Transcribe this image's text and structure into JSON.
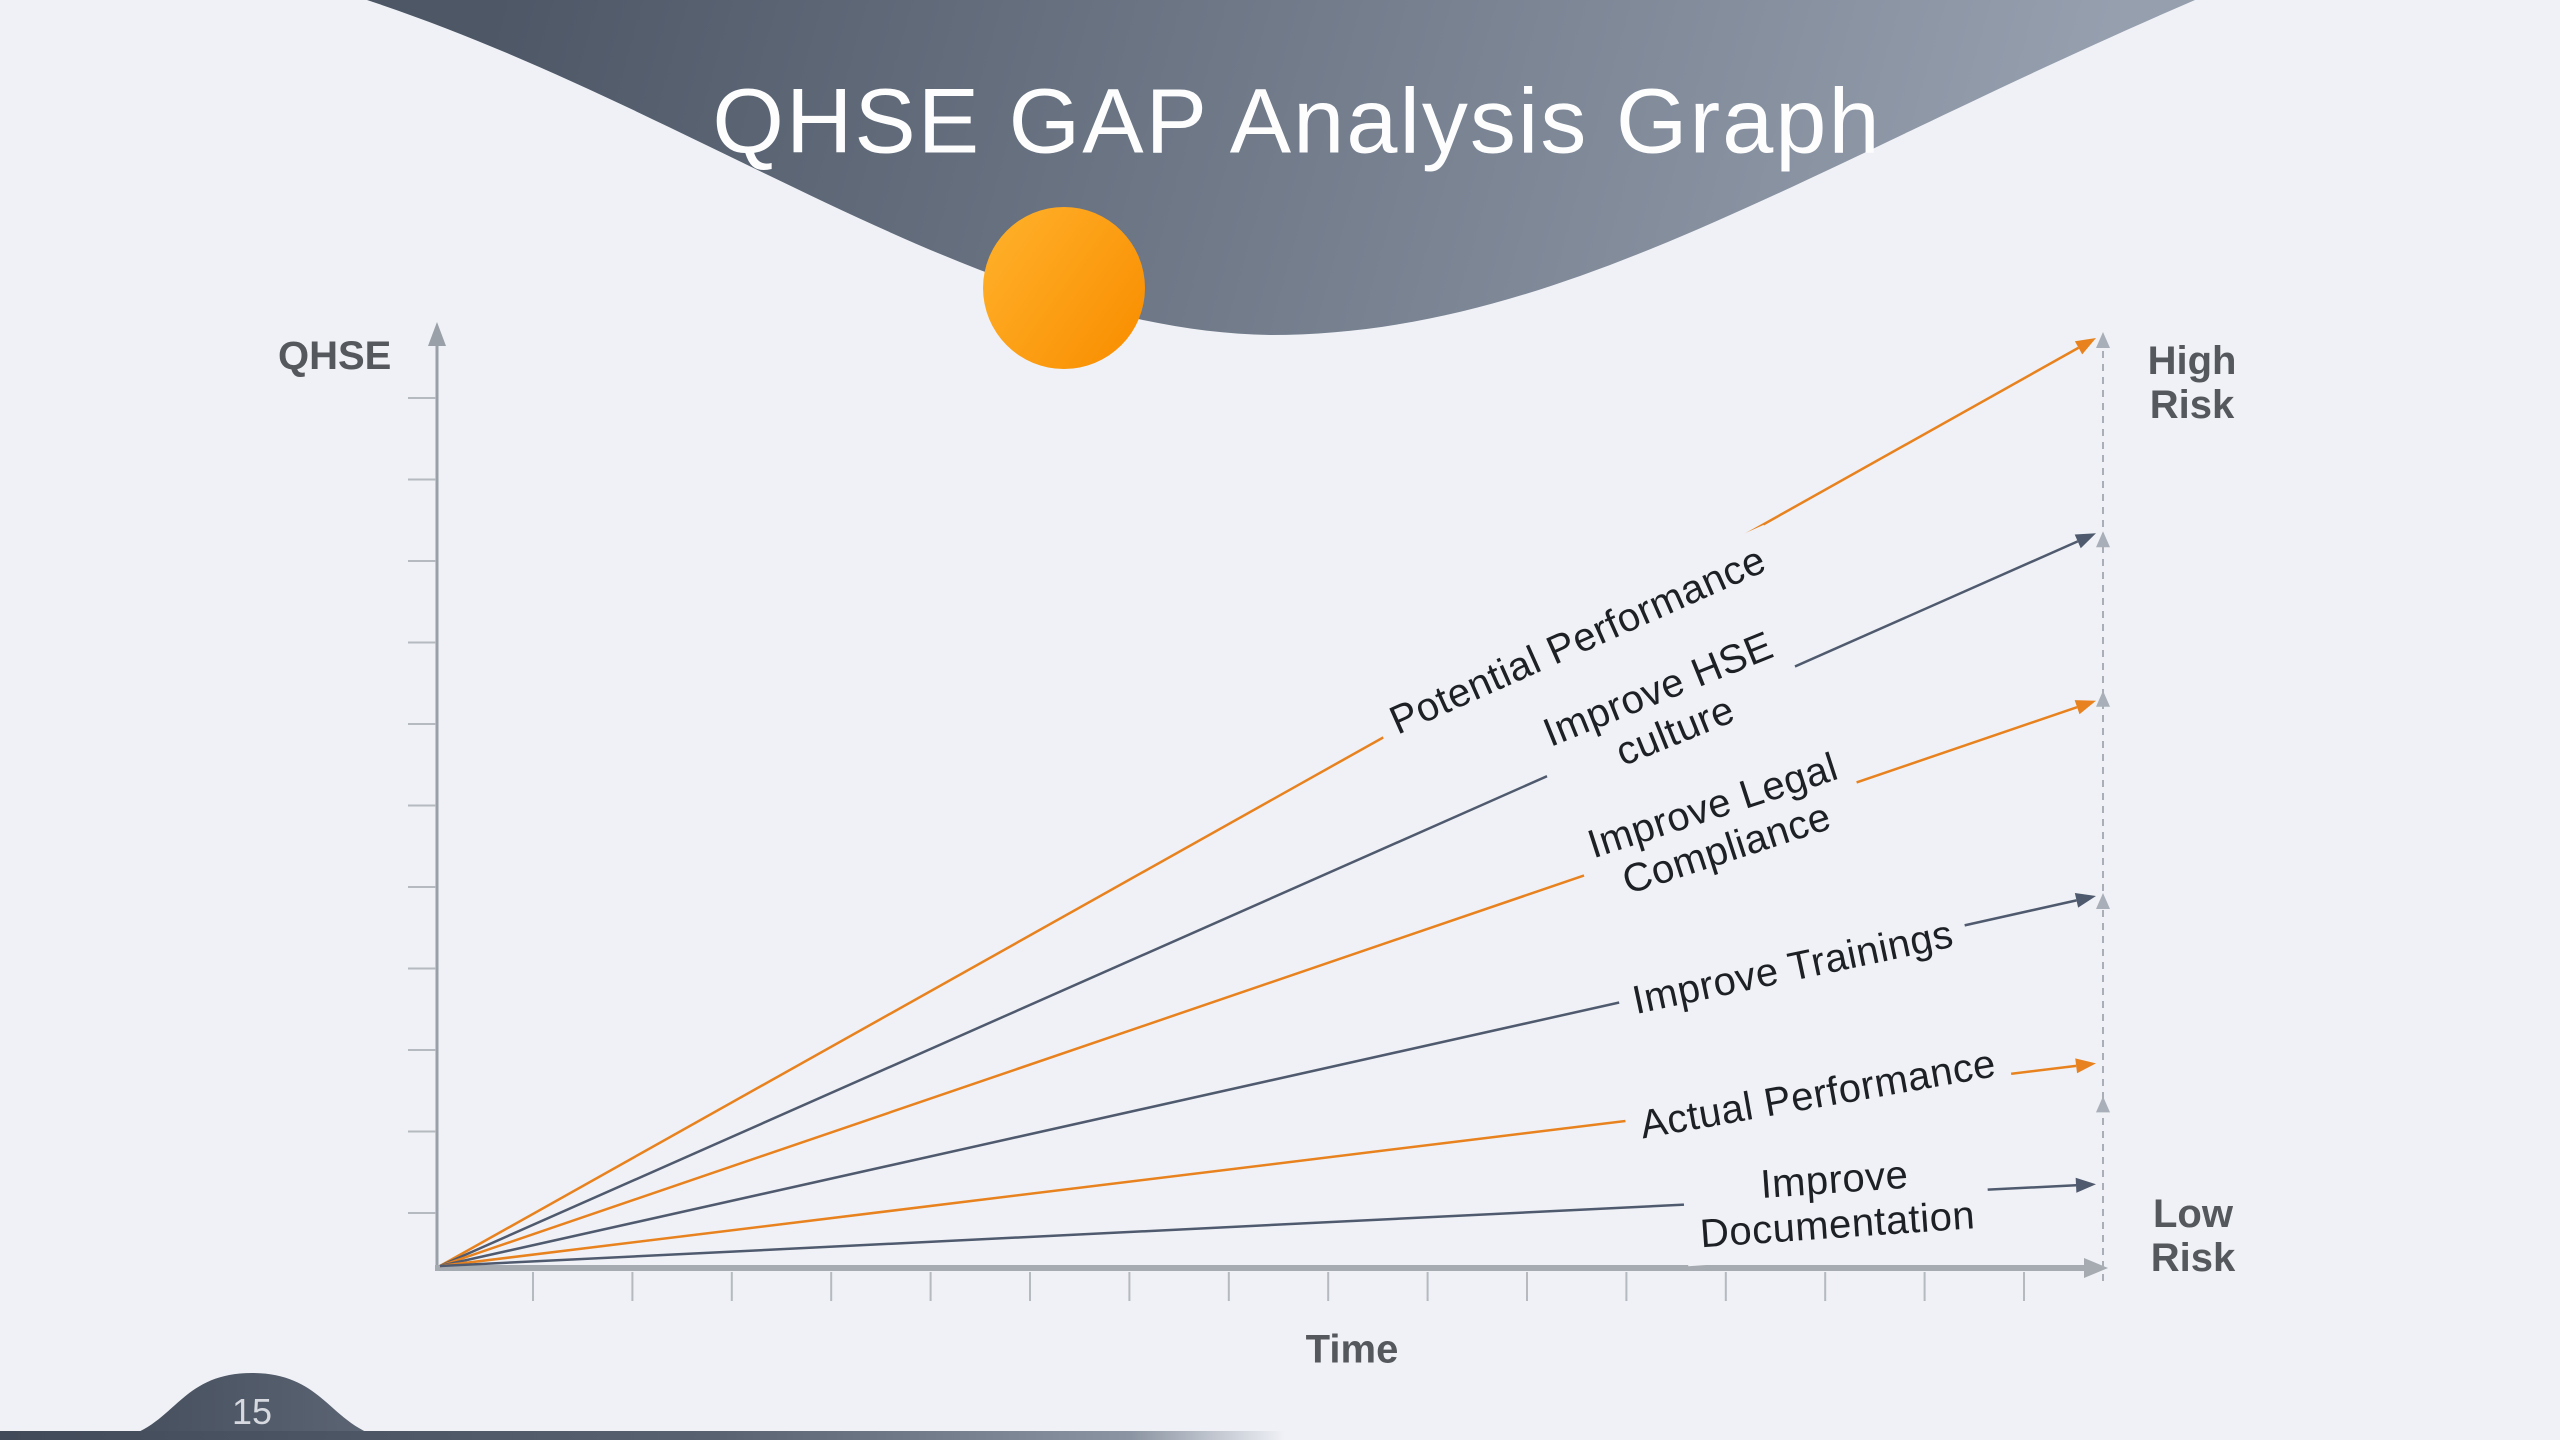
{
  "slide": {
    "title": "QHSE GAP Analysis Graph",
    "page_number": "15"
  },
  "chart": {
    "y_axis_label": "QHSE",
    "x_axis_label": "Time",
    "high_risk_label": "High\nRisk",
    "low_risk_label": "Low\nRisk",
    "labels": [
      {
        "text": "Potential Performance"
      },
      {
        "text": "Improve HSE\nculture"
      },
      {
        "text": "Improve Legal\nCompliance"
      },
      {
        "text": "Improve Trainings"
      },
      {
        "text": "Actual Performance"
      },
      {
        "text": "Improve\nDocumentation"
      }
    ]
  },
  "colors": {
    "accent_orange": "#E8821E",
    "series_gray": "#4F5A6E",
    "axis_gray": "#A6ABB1",
    "tick_gray": "#B4BAC0",
    "dashed_gray": "#A9AFB8",
    "wave_dark": "#4D5766",
    "wave_light": "#959FAE",
    "background": "#EFF1F6",
    "heading_text": "#55585C",
    "label_text": "#1D2024",
    "title_text": "#FDFDFE",
    "circle_orange_light": "#FFB02A",
    "circle_orange_deep": "#F98E00"
  },
  "chart_data": {
    "type": "line",
    "title": "QHSE GAP Analysis Graph",
    "xlabel": "Time",
    "ylabel": "QHSE",
    "axes_quantitative": false,
    "x_range_norm": [
      0,
      1
    ],
    "y_range_norm": [
      0,
      1
    ],
    "legend": "none",
    "grid": false,
    "annotations": [
      "High Risk",
      "Low Risk"
    ],
    "series": [
      {
        "name": "Potential Performance",
        "color_role": "orange",
        "start_value": 0,
        "end_value": 1.0
      },
      {
        "name": "Improve HSE culture",
        "color_role": "gray",
        "start_value": 0,
        "end_value": 0.79
      },
      {
        "name": "Improve Legal Compliance",
        "color_role": "orange",
        "start_value": 0,
        "end_value": 0.61
      },
      {
        "name": "Improve Trainings",
        "color_role": "gray",
        "start_value": 0,
        "end_value": 0.4
      },
      {
        "name": "Actual Performance",
        "color_role": "orange",
        "start_value": 0,
        "end_value": 0.22
      },
      {
        "name": "Improve Documentation",
        "color_role": "gray",
        "start_value": 0,
        "end_value": 0.09
      }
    ]
  }
}
